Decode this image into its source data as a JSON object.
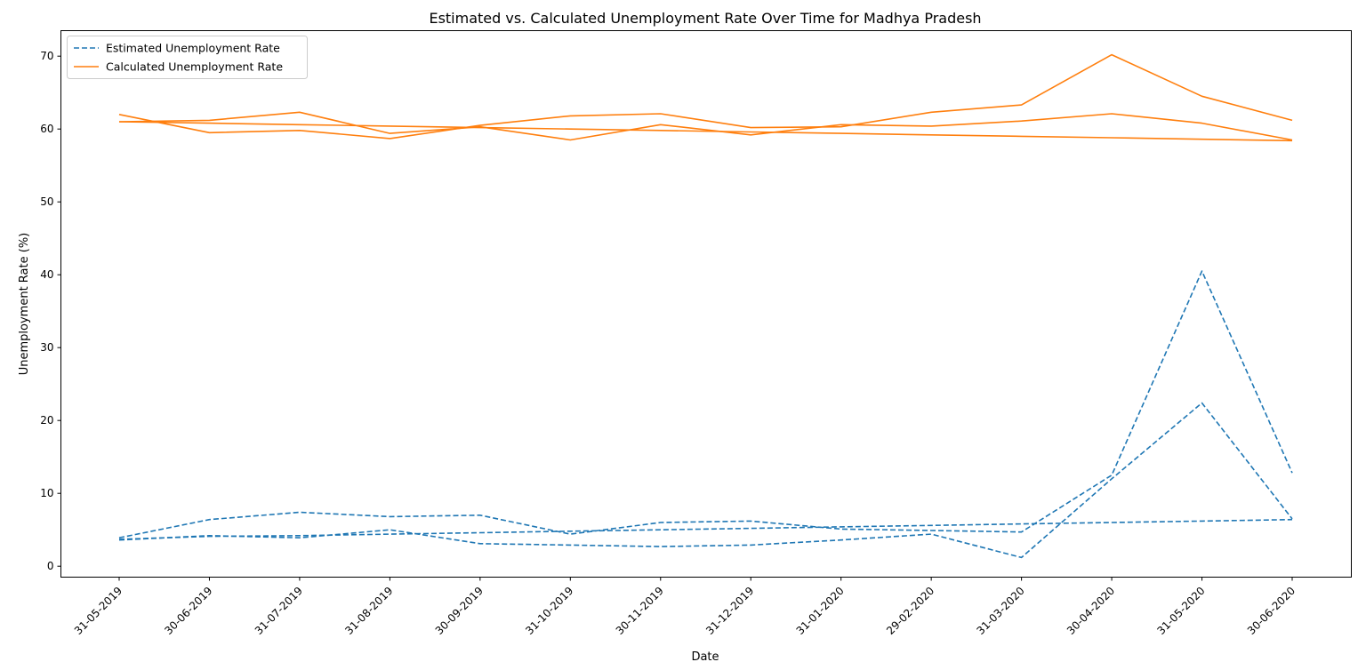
{
  "chart_data": {
    "type": "line",
    "title": "Estimated vs. Calculated Unemployment Rate Over Time for Madhya Pradesh",
    "xlabel": "Date",
    "ylabel": "Unemployment Rate (%)",
    "categories": [
      "31-05-2019",
      "30-06-2019",
      "31-07-2019",
      "31-08-2019",
      "30-09-2019",
      "31-10-2019",
      "30-11-2019",
      "31-12-2019",
      "31-01-2020",
      "29-02-2020",
      "31-03-2020",
      "30-04-2020",
      "31-05-2020",
      "30-06-2020"
    ],
    "ylim": [
      -1.5,
      73.5
    ],
    "yticks": [
      0,
      10,
      20,
      30,
      40,
      50,
      60,
      70
    ],
    "grid": false,
    "legend_position": "upper-left",
    "series": [
      {
        "name": "Estimated Unemployment Rate",
        "color": "#1f77b4",
        "style": "dashed",
        "runs": [
          [
            3.9,
            6.4,
            7.4,
            6.8,
            7.0,
            4.4,
            6.0,
            6.2,
            5.1,
            4.9,
            4.7,
            12.5,
            40.5,
            12.8
          ],
          [
            3.6,
            4.2,
            3.9,
            5.0,
            3.1,
            2.9,
            2.7,
            2.9,
            3.6,
            4.4,
            1.2,
            12.0,
            22.4,
            6.5
          ],
          [
            3.7,
            4.1,
            4.2,
            4.4,
            4.6,
            4.8,
            5.0,
            5.2,
            5.4,
            5.6,
            5.8,
            6.0,
            6.2,
            6.4
          ]
        ]
      },
      {
        "name": "Calculated Unemployment Rate",
        "color": "#ff7f0e",
        "style": "solid",
        "runs": [
          [
            62.0,
            59.5,
            59.8,
            58.7,
            60.5,
            61.8,
            62.1,
            60.2,
            60.3,
            62.3,
            63.3,
            70.2,
            64.5,
            61.2
          ],
          [
            61.0,
            61.2,
            62.3,
            59.4,
            60.3,
            58.5,
            60.6,
            59.2,
            60.6,
            60.4,
            61.1,
            62.1,
            60.8,
            58.5
          ],
          [
            61.0,
            60.8,
            60.6,
            60.4,
            60.2,
            60.0,
            59.8,
            59.6,
            59.4,
            59.2,
            59.0,
            58.8,
            58.6,
            58.4
          ]
        ]
      }
    ]
  }
}
